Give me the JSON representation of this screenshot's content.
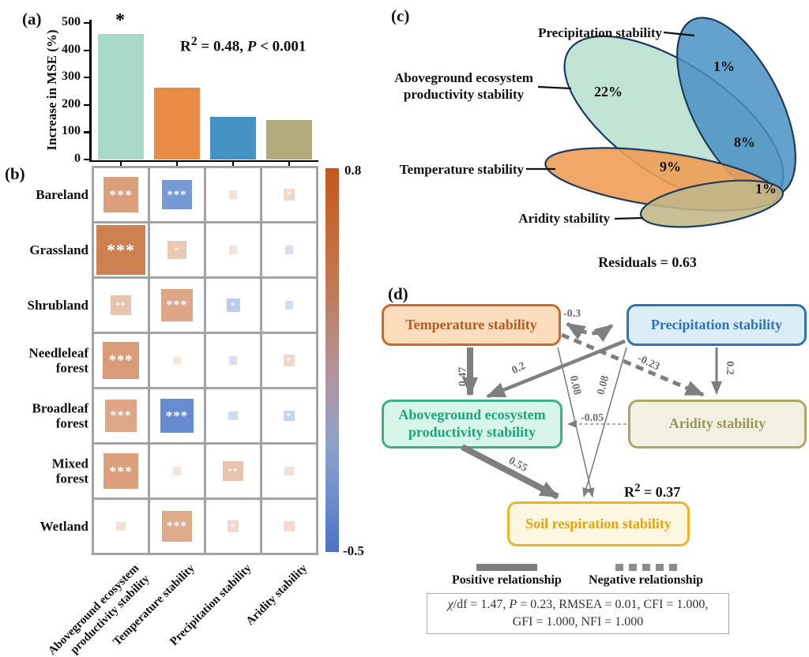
{
  "panel_a": {
    "tag": "(a)",
    "ylabel": "Increase in MSE (%)",
    "annotation": {
      "pre": "R",
      "sup": "2",
      "mid": " = 0.48, ",
      "p": "P",
      "post": " < 0.001"
    },
    "chart_data": {
      "type": "bar",
      "categories": [
        "Aboveground ecosystem productivity stability",
        "Temperature stability",
        "Precipitation stability",
        "Aridity stability"
      ],
      "values": [
        460,
        262,
        155,
        145
      ],
      "colors": [
        "#a9dac7",
        "#e68c44",
        "#4493c4",
        "#b3aa7d"
      ],
      "significance": [
        "*",
        "",
        "",
        ""
      ],
      "ylabel": "Increase in MSE (%)",
      "ylim": [
        0,
        500
      ],
      "yticks": [
        0,
        100,
        200,
        300,
        400,
        500
      ]
    }
  },
  "panel_b": {
    "tag": "(b)",
    "chart_data": {
      "type": "heatmap",
      "rows": [
        "Bareland",
        "Grassland",
        "Shrubland",
        "Needleleaf\nforest",
        "Broadleaf\nforest",
        "Mixed\nforest",
        "Wetland"
      ],
      "cols": [
        "Aboveground ecosystem\nproductivity stability",
        "Temperature stability",
        "Precipitation stability",
        "Aridity stability"
      ],
      "cells": [
        [
          {
            "v": 0.42,
            "sig": "***"
          },
          {
            "v": -0.35,
            "sig": "***"
          },
          {
            "v": 0.1,
            "sig": ""
          },
          {
            "v": 0.14,
            "sig": "*"
          }
        ],
        [
          {
            "v": 0.59,
            "sig": "***"
          },
          {
            "v": 0.22,
            "sig": "*"
          },
          {
            "v": 0.1,
            "sig": ""
          },
          {
            "v": -0.1,
            "sig": ""
          }
        ],
        [
          {
            "v": 0.24,
            "sig": "**"
          },
          {
            "v": 0.38,
            "sig": "***"
          },
          {
            "v": -0.16,
            "sig": "*"
          },
          {
            "v": -0.1,
            "sig": ""
          }
        ],
        [
          {
            "v": 0.44,
            "sig": "***"
          },
          {
            "v": 0.09,
            "sig": ""
          },
          {
            "v": -0.1,
            "sig": ""
          },
          {
            "v": 0.14,
            "sig": "*"
          }
        ],
        [
          {
            "v": 0.38,
            "sig": "***"
          },
          {
            "v": -0.4,
            "sig": "***"
          },
          {
            "v": -0.11,
            "sig": ""
          },
          {
            "v": -0.13,
            "sig": "*"
          }
        ],
        [
          {
            "v": 0.42,
            "sig": "***"
          },
          {
            "v": 0.1,
            "sig": ""
          },
          {
            "v": 0.24,
            "sig": "**"
          },
          {
            "v": 0.11,
            "sig": ""
          }
        ],
        [
          {
            "v": 0.11,
            "sig": ""
          },
          {
            "v": 0.36,
            "sig": "***"
          },
          {
            "v": 0.14,
            "sig": "*"
          },
          {
            "v": 0.13,
            "sig": ""
          }
        ]
      ],
      "colorbar": {
        "max_label": "0.8",
        "min_label": "-0.5",
        "max": 0.8,
        "min": -0.5,
        "pos_color": "#bf5a1e",
        "neg_color": "#4472c4"
      }
    }
  },
  "panel_c": {
    "tag": "(c)",
    "chart_data": {
      "type": "venn",
      "sets": [
        {
          "name": "Aboveground ecosystem\nproductivity stability",
          "pct": "22%",
          "fill": "#b7dfce"
        },
        {
          "name": "Precipitation stability",
          "pct": "1%",
          "fill": "#4a90c4"
        },
        {
          "name": "Temperature stability",
          "pct": "9%",
          "fill": "#ee9d57"
        },
        {
          "name": "Aridity stability",
          "pct": "1%",
          "fill": "#c0b689"
        }
      ],
      "overlaps": [
        {
          "pct": "8%"
        }
      ],
      "residuals": "Residuals = 0.63"
    }
  },
  "panel_d": {
    "tag": "(d)",
    "boxes": [
      {
        "id": "temp",
        "label": "Temperature stability",
        "fill": "#fbdcbc",
        "border": "#c96a28",
        "text_color": "#b35c22"
      },
      {
        "id": "precip",
        "label": "Precipitation stability",
        "fill": "#dcedf8",
        "border": "#2e75b6",
        "text_color": "#2e75b6"
      },
      {
        "id": "aep",
        "label": "Aboveground ecosystem\nproductivity stability",
        "fill": "#d8f5e9",
        "border": "#3cb08a",
        "text_color": "#1fa37c"
      },
      {
        "id": "aridity",
        "label": "Aridity stability",
        "fill": "#f1f0e3",
        "border": "#aca763",
        "text_color": "#9a9551"
      },
      {
        "id": "soil",
        "label": "Soil respiration stability",
        "fill": "#fdf6e0",
        "border": "#edb424",
        "text_color": "#e2a50e"
      }
    ],
    "paths": [
      {
        "id": "temp-aep",
        "coef": "0.47",
        "sign": "positive"
      },
      {
        "id": "precip-aep",
        "coef": "0.2",
        "sign": "positive"
      },
      {
        "id": "temp-precip",
        "coef": "-0.3",
        "sign": "negative"
      },
      {
        "id": "temp-aridity",
        "coef": "-0.23",
        "sign": "negative"
      },
      {
        "id": "precip-aridity",
        "coef": "0.2",
        "sign": "positive"
      },
      {
        "id": "aridity-aep",
        "coef": "-0.05",
        "sign": "negative"
      },
      {
        "id": "aep-soil",
        "coef": "0.55",
        "sign": "positive"
      },
      {
        "id": "temp-soil",
        "coef": "0.08",
        "sign": "positive"
      },
      {
        "id": "precip-soil",
        "coef": "0.08",
        "sign": "positive"
      }
    ],
    "r2": {
      "pre": "R",
      "sup": "2",
      "post": " = 0.37"
    },
    "legend": {
      "positive": "Positive relationship",
      "negative": "Negative relationship"
    },
    "fit": {
      "chi": "χ",
      "chirest": "/df = 1.47, ",
      "p": "P",
      "rest": " = 0.23, RMSEA = 0.01, CFI = 1.000,",
      "line2": "GFI = 1.000, NFI = 1.000"
    }
  }
}
